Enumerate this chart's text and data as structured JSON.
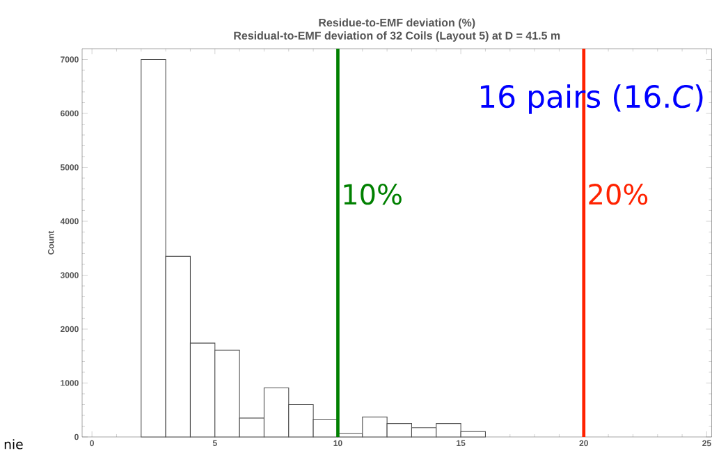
{
  "chart_data": {
    "type": "histogram",
    "title": "Residue-to-EMF deviation (%)",
    "subtitle": "Residual-to-EMF deviation of 32 Coils (Layout 5) at D = 41.5 m",
    "ylabel": "Count",
    "bins": [
      2,
      3,
      4,
      5,
      6,
      7,
      8,
      9,
      10,
      11,
      12,
      13,
      14,
      15,
      16
    ],
    "values": [
      7000,
      3350,
      1740,
      1610,
      350,
      910,
      600,
      330,
      60,
      370,
      250,
      170,
      250,
      100
    ],
    "color": "#ffffff",
    "xlim": [
      -0.4,
      25.2
    ],
    "xticks": [
      0,
      5,
      10,
      15,
      20,
      25
    ],
    "ylim": [
      0,
      7200
    ],
    "yticks": [
      0,
      1000,
      2000,
      3000,
      4000,
      5000,
      6000,
      7000
    ],
    "ref_lines": [
      {
        "axis": "x",
        "value": 10,
        "label": "10%",
        "color": "#008000"
      },
      {
        "axis": "x",
        "value": 20,
        "label": "20%",
        "color": "#ff2200"
      }
    ],
    "annotations": [
      "16 pairs (16.*C*)",
      "nie"
    ],
    "grid": false
  }
}
